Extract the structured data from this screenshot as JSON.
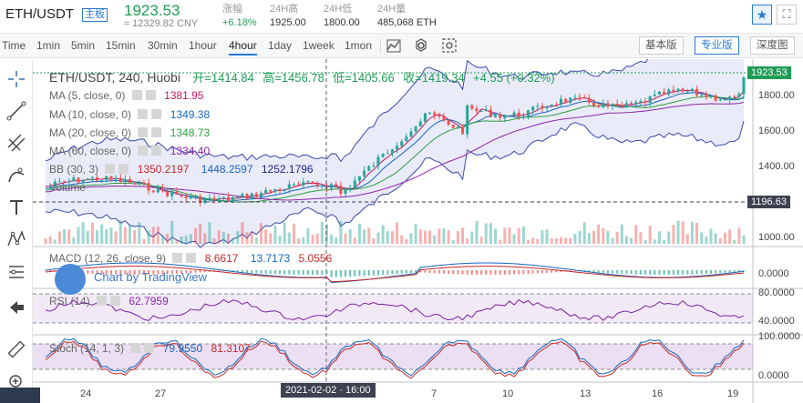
{
  "header": {
    "pair": "ETH/USDT",
    "tag": "主板",
    "price": "1923.53",
    "price_cny": "≈ 12329.82 CNY",
    "stats": [
      {
        "label": "涨幅",
        "value": "+6.18%"
      },
      {
        "label": "24H高",
        "value": "1925.00"
      },
      {
        "label": "24H低",
        "value": "1800.00"
      },
      {
        "label": "24H量",
        "value": "485,068 ETH"
      }
    ]
  },
  "toolbar": {
    "timeframes": [
      "Time",
      "1min",
      "5min",
      "15min",
      "30min",
      "1hour",
      "4hour",
      "1day",
      "1week",
      "1mon"
    ],
    "active_timeframe": "4hour",
    "views": [
      "基本版",
      "专业版",
      "深度图"
    ],
    "active_view": "专业版"
  },
  "chart": {
    "title": "ETH/USDT, 240, Huobi",
    "ohlc": {
      "o_label": "开=",
      "o": "1414.84",
      "h_label": "高=",
      "h": "1456.78",
      "l_label": "低=",
      "l": "1405.66",
      "c_label": "收=",
      "c": "1419.34",
      "chg": "+4.55 (+0.32%)"
    },
    "indicators": [
      {
        "name": "MA (5, close, 0)",
        "value": "1381.95",
        "color": "#c2185b"
      },
      {
        "name": "MA (10, close, 0)",
        "value": "1349.38",
        "color": "#1565c0"
      },
      {
        "name": "MA (20, close, 0)",
        "value": "1348.73",
        "color": "#2e9e3e"
      },
      {
        "name": "MA (60, close, 0)",
        "value": "1334.40",
        "color": "#8e24aa"
      }
    ],
    "bb": {
      "name": "BB (30, 3)",
      "values": [
        "1350.2197",
        "1448.2597",
        "1252.1796"
      ],
      "colors": [
        "#c62828",
        "#1565c0",
        "#1a237e"
      ]
    },
    "volume_label": "Volume",
    "watermark": "Chart by TradingView",
    "price_axis": [
      "1800.00",
      "1600.00",
      "1400.00",
      "1000.00"
    ],
    "last_price_tag": "1923.53",
    "hline_tag": "1196.63",
    "macd": {
      "name": "MACD (12, 26, close, 9)",
      "values": [
        "8.6617",
        "13.7173",
        "5.0556"
      ],
      "colors": [
        "#c62828",
        "#1565c0",
        "#c62828"
      ],
      "axis": [
        "0.0000"
      ]
    },
    "rsi": {
      "name": "RSI (14)",
      "value": "62.7959",
      "axis": [
        "80.0000",
        "40.0000"
      ]
    },
    "stoch": {
      "name": "Stoch (14, 1, 3)",
      "values": [
        "79.9550",
        "81.3107"
      ],
      "colors": [
        "#1565c0",
        "#c62828"
      ],
      "axis": [
        "100.0000",
        "0.0000"
      ]
    },
    "time_axis": [
      "24",
      "27",
      "4",
      "7",
      "10",
      "13",
      "16",
      "19"
    ],
    "crosshair_time": "2021-02-02 · 16:00"
  },
  "colors": {
    "up": "#26a69a",
    "down": "#ef5350",
    "accent": "#2a7ad6"
  }
}
